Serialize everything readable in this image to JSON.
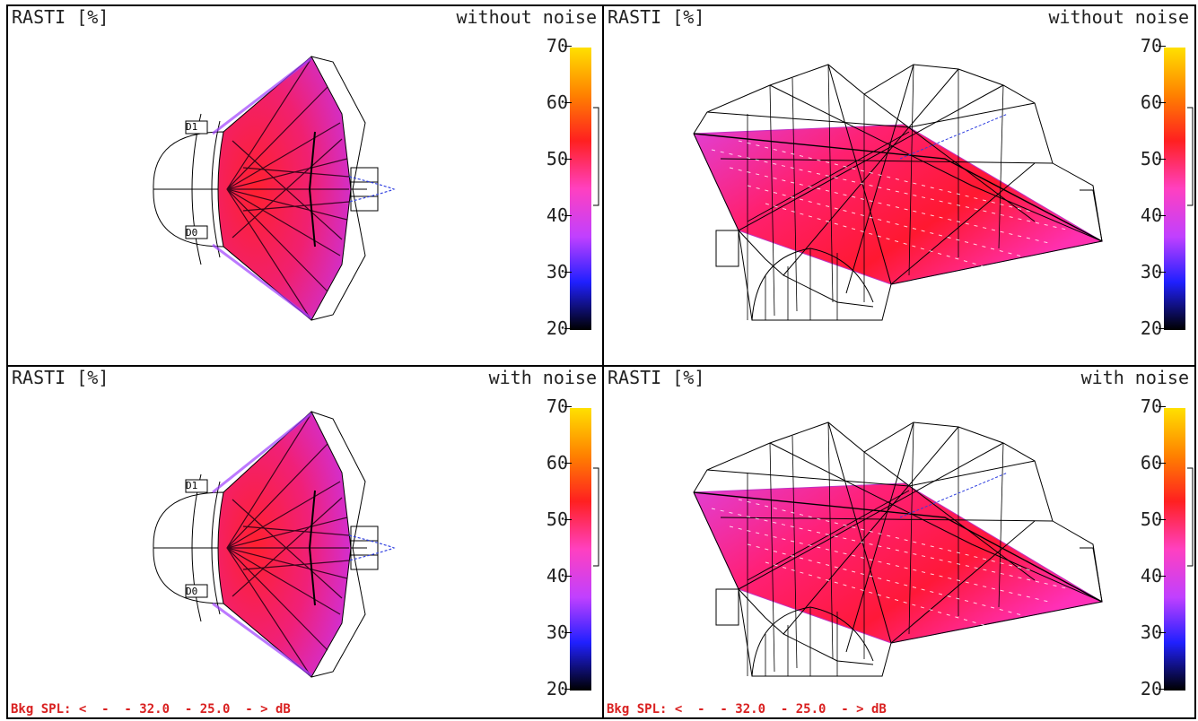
{
  "panels": [
    {
      "id": "tl",
      "title": "RASTI [%]",
      "mode": "without noise",
      "bkg": ""
    },
    {
      "id": "tr",
      "title": "RASTI [%]",
      "mode": "without noise",
      "bkg": ""
    },
    {
      "id": "bl",
      "title": "RASTI [%]",
      "mode": "with noise",
      "bkg": "Bkg SPL: <  -  - 32.0  - 25.0  - > dB"
    },
    {
      "id": "br",
      "title": "RASTI [%]",
      "mode": "with noise",
      "bkg": "Bkg SPL: <  -  - 32.0  - 25.0  - > dB"
    }
  ],
  "color_scale": {
    "ticks": [
      "70",
      "60",
      "50",
      "40",
      "30",
      "20"
    ],
    "min": 20,
    "max": 70,
    "colors": [
      "#ffe000",
      "#ff8000",
      "#ff2020",
      "#ff40c0",
      "#c040ff",
      "#2020ff",
      "#000000"
    ]
  },
  "sources": {
    "labels": [
      "D1",
      "D0"
    ]
  }
}
